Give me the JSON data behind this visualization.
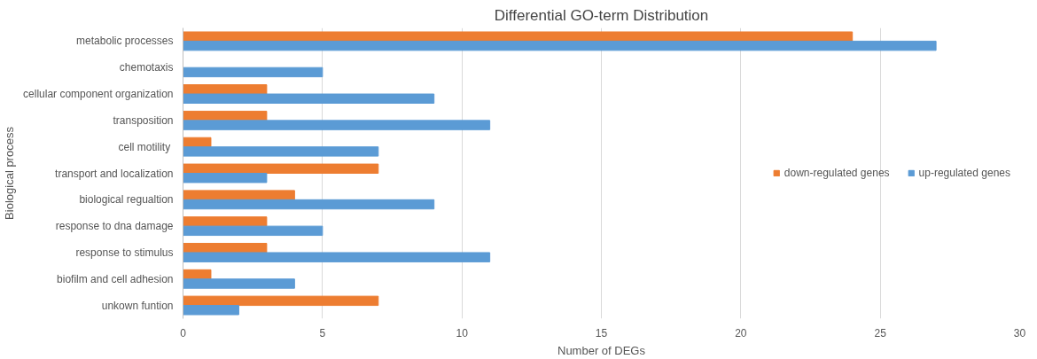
{
  "chart_data": {
    "type": "bar",
    "orientation": "horizontal",
    "title": "Differential GO-term Distribution",
    "xlabel": "Number of DEGs",
    "ylabel": "Biological process",
    "categories": [
      "metabolic processes",
      "chemotaxis",
      "cellular component organization",
      "transposition",
      "cell motility ",
      "transport and localization",
      "biological regualtion",
      "response to dna damage",
      "response to stimulus",
      "biofilm and cell adhesion",
      "unkown funtion"
    ],
    "series": [
      {
        "name": "down-regulated genes",
        "color": "#ed7d31",
        "values": [
          24,
          null,
          3,
          3,
          1,
          7,
          4,
          3,
          3,
          1,
          7
        ]
      },
      {
        "name": "up-regulated genes",
        "color": "#5b9bd5",
        "values": [
          27,
          5,
          9,
          11,
          7,
          3,
          9,
          5,
          11,
          4,
          2
        ]
      }
    ],
    "xlim": [
      0,
      30
    ],
    "xticks": [
      0,
      5,
      10,
      15,
      20,
      25,
      30
    ],
    "grid": "x",
    "legend": "right"
  }
}
